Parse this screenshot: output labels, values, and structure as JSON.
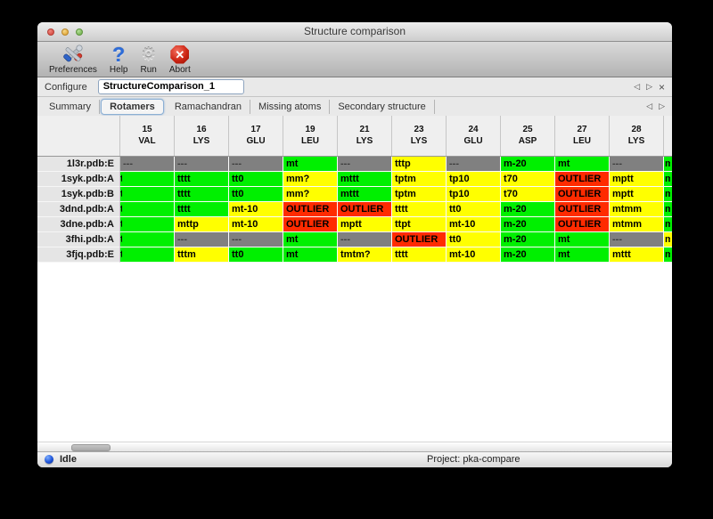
{
  "window": {
    "title": "Structure comparison"
  },
  "toolbar": {
    "buttons": [
      {
        "id": "preferences",
        "label": "Preferences",
        "icon": "preferences-tools-icon"
      },
      {
        "id": "help",
        "label": "Help",
        "icon": "help-question-icon"
      },
      {
        "id": "run",
        "label": "Run",
        "icon": "run-gear-icon"
      },
      {
        "id": "abort",
        "label": "Abort",
        "icon": "abort-stop-icon"
      }
    ]
  },
  "configure_bar": {
    "label": "Configure",
    "field_value": "StructureComparison_1",
    "nav_icons": [
      "prev-arrow-icon",
      "next-arrow-icon",
      "close-icon"
    ]
  },
  "tab_bar": {
    "tabs": [
      "Summary",
      "Rotamers",
      "Ramachandran",
      "Missing atoms",
      "Secondary structure"
    ],
    "active_tab": "Rotamers",
    "nav_icons": [
      "prev-arrow-icon",
      "next-arrow-icon"
    ]
  },
  "rotamer_table": {
    "columns": [
      {
        "number": "15",
        "residue": "VAL"
      },
      {
        "number": "16",
        "residue": "LYS"
      },
      {
        "number": "17",
        "residue": "GLU"
      },
      {
        "number": "19",
        "residue": "LEU"
      },
      {
        "number": "21",
        "residue": "LYS"
      },
      {
        "number": "23",
        "residue": "LYS"
      },
      {
        "number": "24",
        "residue": "GLU"
      },
      {
        "number": "25",
        "residue": "ASP"
      },
      {
        "number": "27",
        "residue": "LEU"
      },
      {
        "number": "28",
        "residue": "LYS"
      }
    ],
    "status_legend": {
      "ok": "green",
      "warn": "yellow",
      "outlier": "red",
      "na": "gray"
    },
    "rows": [
      {
        "label": "1l3r.pdb:E",
        "cells": [
          {
            "text": "---",
            "status": "na"
          },
          {
            "text": "---",
            "status": "na"
          },
          {
            "text": "---",
            "status": "na"
          },
          {
            "text": "mt",
            "status": "ok"
          },
          {
            "text": "---",
            "status": "na"
          },
          {
            "text": "tttp",
            "status": "warn"
          },
          {
            "text": "---",
            "status": "na"
          },
          {
            "text": "m-20",
            "status": "ok"
          },
          {
            "text": "mt",
            "status": "ok"
          },
          {
            "text": "---",
            "status": "na"
          }
        ],
        "edge": {
          "text": "m",
          "status": "ok"
        }
      },
      {
        "label": "1syk.pdb:A",
        "cells": [
          {
            "text": "t",
            "status": "ok",
            "clip": true
          },
          {
            "text": "tttt",
            "status": "ok"
          },
          {
            "text": "tt0",
            "status": "ok"
          },
          {
            "text": "mm?",
            "status": "warn"
          },
          {
            "text": "mttt",
            "status": "ok"
          },
          {
            "text": "tptm",
            "status": "warn"
          },
          {
            "text": "tp10",
            "status": "warn"
          },
          {
            "text": "t70",
            "status": "warn"
          },
          {
            "text": "OUTLIER",
            "status": "outlier"
          },
          {
            "text": "mptt",
            "status": "warn"
          }
        ],
        "edge": {
          "text": "m",
          "status": "ok"
        }
      },
      {
        "label": "1syk.pdb:B",
        "cells": [
          {
            "text": "t",
            "status": "ok",
            "clip": true
          },
          {
            "text": "tttt",
            "status": "ok"
          },
          {
            "text": "tt0",
            "status": "ok"
          },
          {
            "text": "mm?",
            "status": "warn"
          },
          {
            "text": "mttt",
            "status": "ok"
          },
          {
            "text": "tptm",
            "status": "warn"
          },
          {
            "text": "tp10",
            "status": "warn"
          },
          {
            "text": "t70",
            "status": "warn"
          },
          {
            "text": "OUTLIER",
            "status": "outlier"
          },
          {
            "text": "mptt",
            "status": "warn"
          }
        ],
        "edge": {
          "text": "m",
          "status": "ok"
        }
      },
      {
        "label": "3dnd.pdb:A",
        "cells": [
          {
            "text": "t",
            "status": "ok",
            "clip": true
          },
          {
            "text": "tttt",
            "status": "ok"
          },
          {
            "text": "mt-10",
            "status": "warn"
          },
          {
            "text": "OUTLIER",
            "status": "outlier"
          },
          {
            "text": "OUTLIER",
            "status": "outlier"
          },
          {
            "text": "tttt",
            "status": "warn"
          },
          {
            "text": "tt0",
            "status": "warn"
          },
          {
            "text": "m-20",
            "status": "ok"
          },
          {
            "text": "OUTLIER",
            "status": "outlier"
          },
          {
            "text": "mtmm",
            "status": "warn"
          }
        ],
        "edge": {
          "text": "m",
          "status": "ok"
        }
      },
      {
        "label": "3dne.pdb:A",
        "cells": [
          {
            "text": "t",
            "status": "ok",
            "clip": true
          },
          {
            "text": "mttp",
            "status": "warn"
          },
          {
            "text": "mt-10",
            "status": "warn"
          },
          {
            "text": "OUTLIER",
            "status": "outlier"
          },
          {
            "text": "mptt",
            "status": "warn"
          },
          {
            "text": "ttpt",
            "status": "warn"
          },
          {
            "text": "mt-10",
            "status": "warn"
          },
          {
            "text": "m-20",
            "status": "ok"
          },
          {
            "text": "OUTLIER",
            "status": "outlier"
          },
          {
            "text": "mtmm",
            "status": "warn"
          }
        ],
        "edge": {
          "text": "m",
          "status": "ok"
        }
      },
      {
        "label": "3fhi.pdb:A",
        "cells": [
          {
            "text": "t",
            "status": "ok",
            "clip": true
          },
          {
            "text": "---",
            "status": "na"
          },
          {
            "text": "---",
            "status": "na"
          },
          {
            "text": "mt",
            "status": "ok"
          },
          {
            "text": "---",
            "status": "na"
          },
          {
            "text": "OUTLIER",
            "status": "outlier"
          },
          {
            "text": "tt0",
            "status": "warn"
          },
          {
            "text": "m-20",
            "status": "ok"
          },
          {
            "text": "mt",
            "status": "ok"
          },
          {
            "text": "---",
            "status": "na"
          }
        ],
        "edge": {
          "text": "m",
          "status": "warn"
        }
      },
      {
        "label": "3fjq.pdb:E",
        "cells": [
          {
            "text": "t",
            "status": "ok",
            "clip": true
          },
          {
            "text": "tttm",
            "status": "warn"
          },
          {
            "text": "tt0",
            "status": "ok"
          },
          {
            "text": "mt",
            "status": "ok"
          },
          {
            "text": "tmtm?",
            "status": "warn"
          },
          {
            "text": "tttt",
            "status": "warn"
          },
          {
            "text": "mt-10",
            "status": "warn"
          },
          {
            "text": "m-20",
            "status": "ok"
          },
          {
            "text": "mt",
            "status": "ok"
          },
          {
            "text": "mttt",
            "status": "warn"
          }
        ],
        "edge": {
          "text": "m",
          "status": "ok"
        }
      }
    ]
  },
  "status_bar": {
    "status_text": "Idle",
    "project_text": "Project: pka-compare"
  },
  "colors": {
    "ok": "#00f000",
    "warn": "#ffff00",
    "outlier": "#ff2b00",
    "na": "#808080",
    "accent_border": "#8da4bf"
  }
}
